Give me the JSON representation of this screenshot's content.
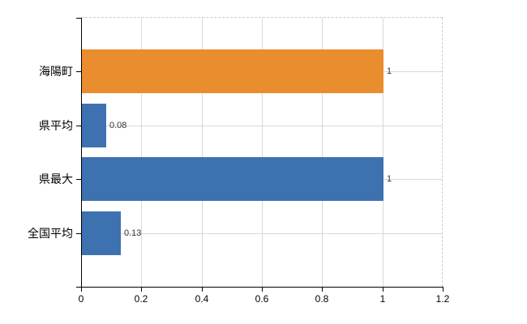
{
  "chart_data": {
    "type": "bar",
    "orientation": "horizontal",
    "title": "",
    "xlabel": "",
    "ylabel": "",
    "categories": [
      "海陽町",
      "県平均",
      "県最大",
      "全国平均"
    ],
    "values": [
      1,
      0.08,
      1,
      0.13
    ],
    "value_labels": [
      "1",
      "0.08",
      "1",
      "0.13"
    ],
    "bar_colors": [
      "#ea8d2e",
      "#3e71b0",
      "#3e71b0",
      "#3e71b0"
    ],
    "xlim": [
      0,
      1.2
    ],
    "x_ticks": [
      0,
      0.2,
      0.4,
      0.6,
      0.8,
      1,
      1.2
    ],
    "x_tick_labels": [
      "0",
      "0.2",
      "0.4",
      "0.6",
      "0.8",
      "1",
      "1.2"
    ],
    "grid": true,
    "legend": false,
    "colors": {
      "grid": "#d9d9d9",
      "dashed_border": "#c9cdca",
      "axis": "#000000",
      "category_text": "#000000",
      "value_text": "#333333",
      "background": "#ffffff"
    }
  }
}
